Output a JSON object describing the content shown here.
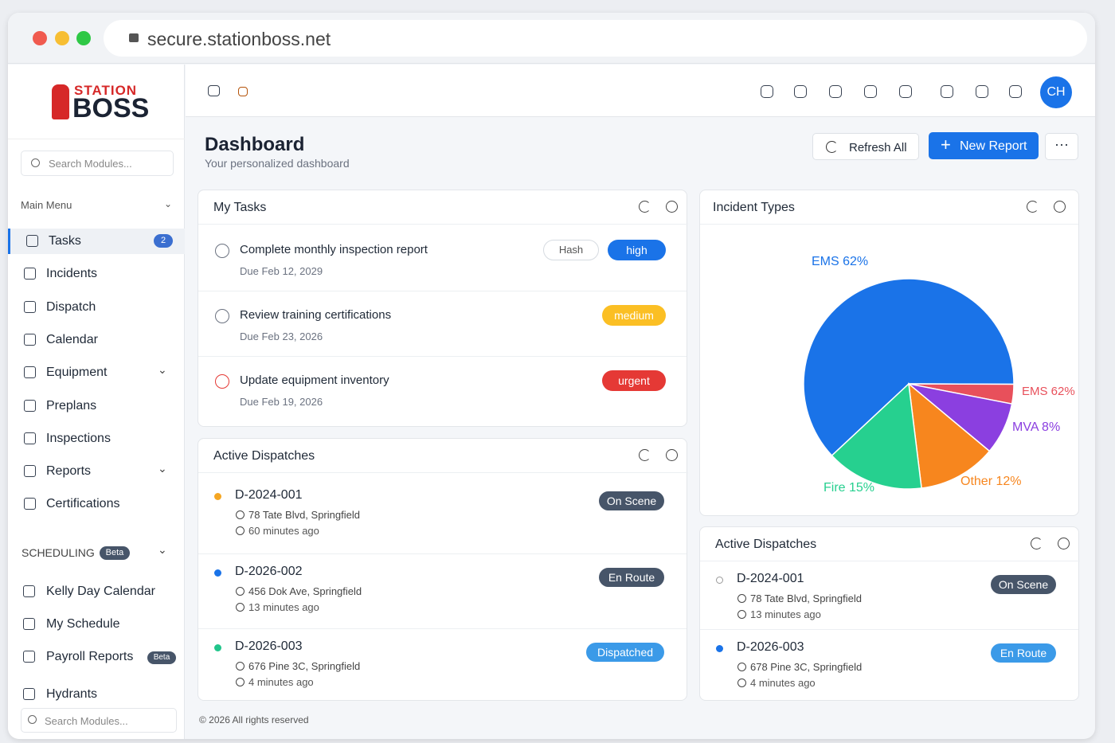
{
  "browser": {
    "url": "secure.stationboss.net"
  },
  "sidebar": {
    "logo": {
      "top": "STATION",
      "bottom": "BOSS"
    },
    "search_placeholder": "Search Modules...",
    "main_menu": "Main Menu",
    "items": [
      {
        "label": "Tasks",
        "badge": "2"
      },
      {
        "label": "Incidents"
      },
      {
        "label": "Dispatch"
      },
      {
        "label": "Calendar"
      },
      {
        "label": "Equipment"
      },
      {
        "label": "Preplans"
      },
      {
        "label": "Inspections"
      },
      {
        "label": "Reports"
      },
      {
        "label": "Certifications"
      }
    ],
    "scheduling": {
      "label": "SCHEDULING",
      "badge": "Beta",
      "items": [
        {
          "label": "Kelly Day Calendar"
        },
        {
          "label": "My Schedule"
        },
        {
          "label": "Payroll Reports",
          "badge": "Beta"
        },
        {
          "label": "Hydrants"
        }
      ]
    },
    "bottom_search": "Search Modules..."
  },
  "topbar": {
    "avatar": "CH"
  },
  "header": {
    "title": "Dashboard",
    "subtitle": "Your personalized dashboard"
  },
  "buttons": {
    "refresh": "Refresh All",
    "new_report": "New Report"
  },
  "tasks": {
    "title": "My Tasks",
    "items": [
      {
        "title": "Complete monthly inspection report",
        "due": "Due Feb 12, 2029",
        "tag": "Hash",
        "priority": "high",
        "color": "#1a73e8"
      },
      {
        "title": "Review training certifications",
        "due": "Due Feb 23, 2026",
        "priority": "medium",
        "color": "#fbbf24"
      },
      {
        "title": "Update equipment inventory",
        "due": "Due Feb 19, 2026",
        "priority": "urgent",
        "color": "#e53935"
      }
    ]
  },
  "dispatches": {
    "title": "Active Dispatches",
    "items": [
      {
        "id": "D-2024-001",
        "address": "78 Tate Blvd, Springfield",
        "time": "60 minutes ago",
        "status": "On Scene",
        "dot": "#f5a623",
        "color": "#475569"
      },
      {
        "id": "D-2026-002",
        "address": "456 Dok Ave, Springfield",
        "time": "13 minutes ago",
        "status": "En Route",
        "dot": "#1a73e8",
        "color": "#475569"
      },
      {
        "id": "D-2026-003",
        "address": "676 Pine 3C, Springfield",
        "time": "4 minutes ago",
        "status": "Dispatched",
        "dot": "#22c58b",
        "color": "#3b9ae8"
      }
    ]
  },
  "chart_data": {
    "type": "pie",
    "title": "Incident Types",
    "values": [
      62,
      3,
      8,
      12,
      15
    ],
    "value_labels": [
      "EMS 62%",
      null,
      "MVA 8%",
      "Other 12%",
      "Fire 15%"
    ],
    "colors": [
      "#1a73e8",
      "#e8505b",
      "#8b3fe0",
      "#f7861e",
      "#26d08f"
    ],
    "annotations": [
      "EMS 62%"
    ]
  },
  "dispatches_small": {
    "title": "Active Dispatches",
    "items": [
      {
        "id": "D-2024-001",
        "address": "78 Tate Blvd, Springfield",
        "time": "13 minutes ago",
        "status": "On Scene",
        "dot": null,
        "color": "#475569"
      },
      {
        "id": "D-2026-003",
        "address": "678 Pine 3C, Springfield",
        "time": "4 minutes ago",
        "status": "En Route",
        "dot": "#1a73e8",
        "color": "#3b9ae8"
      }
    ]
  },
  "footer": "© 2026 All rights reserved"
}
